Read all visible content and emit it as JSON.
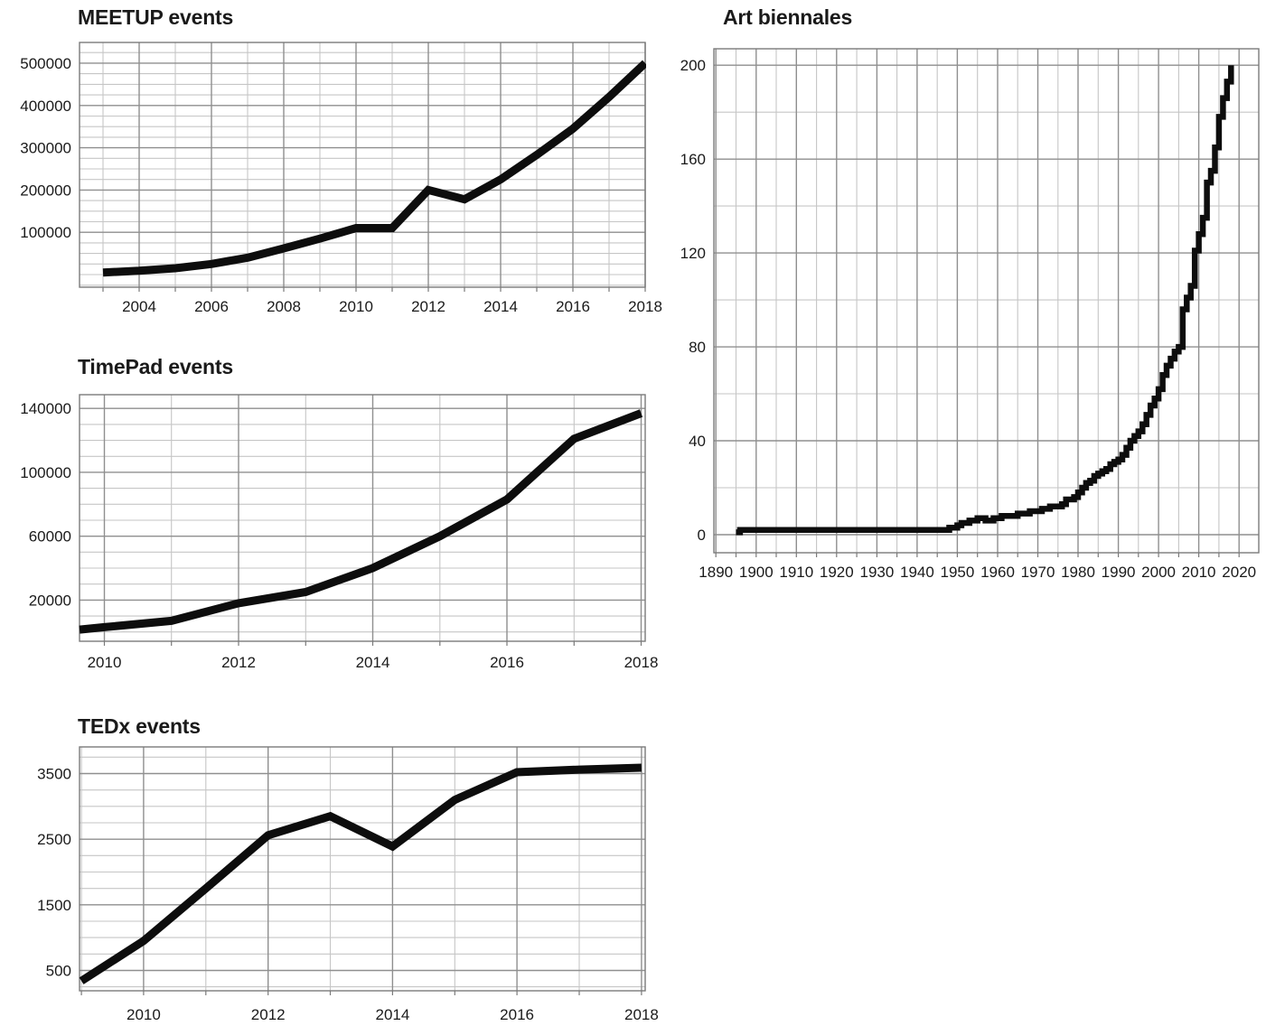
{
  "page": {
    "background": "#ffffff",
    "line_color": "#0d0d0d",
    "grid_minor_color": "#c6c6c6",
    "grid_major_color": "#8f8f8f",
    "axis_border_color": "#7a7a7a",
    "text_color": "#1a1a1a"
  },
  "chart_data": [
    {
      "id": "meetup-events",
      "type": "line",
      "title": "MEETUP events",
      "xlabel": "",
      "ylabel": "",
      "x": [
        2003,
        2004,
        2005,
        2006,
        2007,
        2008,
        2009,
        2010,
        2011,
        2012,
        2013,
        2014,
        2015,
        2016,
        2017,
        2018
      ],
      "values": [
        5000,
        9000,
        15000,
        25000,
        40000,
        62000,
        85000,
        110000,
        110000,
        200000,
        178000,
        225000,
        283000,
        345000,
        420000,
        500000
      ],
      "xlim": [
        2002.35,
        2018.0
      ],
      "ylim": [
        -29800,
        549000
      ],
      "x_ticks": [
        2004,
        2006,
        2008,
        2010,
        2012,
        2014,
        2016,
        2018
      ],
      "x_minor_step": 1,
      "y_ticks": [
        100000,
        200000,
        300000,
        400000,
        500000
      ],
      "y_minor_step": 25000,
      "grid": true,
      "legend": false,
      "extend_left": false
    },
    {
      "id": "timepad-events",
      "type": "line",
      "title": "TimePad events",
      "xlabel": "",
      "ylabel": "",
      "x": [
        2010,
        2011,
        2012,
        2013,
        2014,
        2015,
        2016,
        2017,
        2018
      ],
      "values": [
        3000,
        7000,
        18000,
        25000,
        40000,
        60000,
        83000,
        121000,
        137000
      ],
      "xlim": [
        2009.63,
        2018.06
      ],
      "ylim": [
        -5800,
        148600
      ],
      "x_ticks": [
        2010,
        2012,
        2014,
        2016,
        2018
      ],
      "x_minor_step": 1,
      "y_ticks": [
        20000,
        60000,
        100000,
        140000
      ],
      "y_minor_step": 10000,
      "grid": true,
      "legend": false,
      "extend_left": true
    },
    {
      "id": "tedx-events",
      "type": "line",
      "title": "TEDx events",
      "xlabel": "",
      "ylabel": "",
      "x": [
        2009,
        2010,
        2011,
        2012,
        2013,
        2014,
        2015,
        2016,
        2017,
        2018
      ],
      "values": [
        340,
        950,
        1750,
        2560,
        2850,
        2390,
        3100,
        3520,
        3560,
        3590
      ],
      "xlim": [
        2008.97,
        2018.06
      ],
      "ylim": [
        190,
        3906
      ],
      "x_ticks": [
        2010,
        2012,
        2014,
        2016,
        2018
      ],
      "x_minor_step": 1,
      "y_ticks": [
        500,
        1500,
        2500,
        3500
      ],
      "y_minor_step": 250,
      "grid": true,
      "legend": false,
      "extend_left": false
    },
    {
      "id": "art-biennales",
      "type": "step",
      "title": "Art biennales",
      "xlabel": "",
      "ylabel": "",
      "x": [
        1895,
        1896,
        1948,
        1950,
        1951,
        1953,
        1955,
        1957,
        1959,
        1961,
        1965,
        1968,
        1971,
        1973,
        1976,
        1977,
        1979,
        1980,
        1981,
        1982,
        1983,
        1984,
        1985,
        1986,
        1987,
        1988,
        1989,
        1990,
        1991,
        1992,
        1993,
        1994,
        1995,
        1996,
        1997,
        1998,
        1999,
        2000,
        2001,
        2002,
        2003,
        2004,
        2005,
        2006,
        2007,
        2008,
        2009,
        2010,
        2011,
        2012,
        2013,
        2014,
        2015,
        2016,
        2017,
        2018
      ],
      "values": [
        1,
        2,
        3,
        4,
        5,
        6,
        7,
        6,
        7,
        8,
        9,
        10,
        11,
        12,
        13,
        15,
        16,
        18,
        20,
        22,
        23,
        25,
        26,
        27,
        28,
        30,
        31,
        32,
        34,
        37,
        40,
        42,
        44,
        47,
        51,
        55,
        58,
        62,
        68,
        72,
        75,
        78,
        80,
        96,
        101,
        106,
        121,
        128,
        135,
        150,
        155,
        165,
        178,
        186,
        193,
        200
      ],
      "xlim": [
        1889.5,
        2024.9
      ],
      "ylim": [
        -7.7,
        207
      ],
      "x_ticks": [
        1890,
        1900,
        1910,
        1920,
        1930,
        1940,
        1950,
        1960,
        1970,
        1980,
        1990,
        2000,
        2010,
        2020
      ],
      "x_minor_step": 5,
      "y_ticks": [
        0,
        40,
        80,
        120,
        160,
        200
      ],
      "y_minor_step": 20,
      "grid": true,
      "legend": false,
      "extend_left": false
    }
  ]
}
